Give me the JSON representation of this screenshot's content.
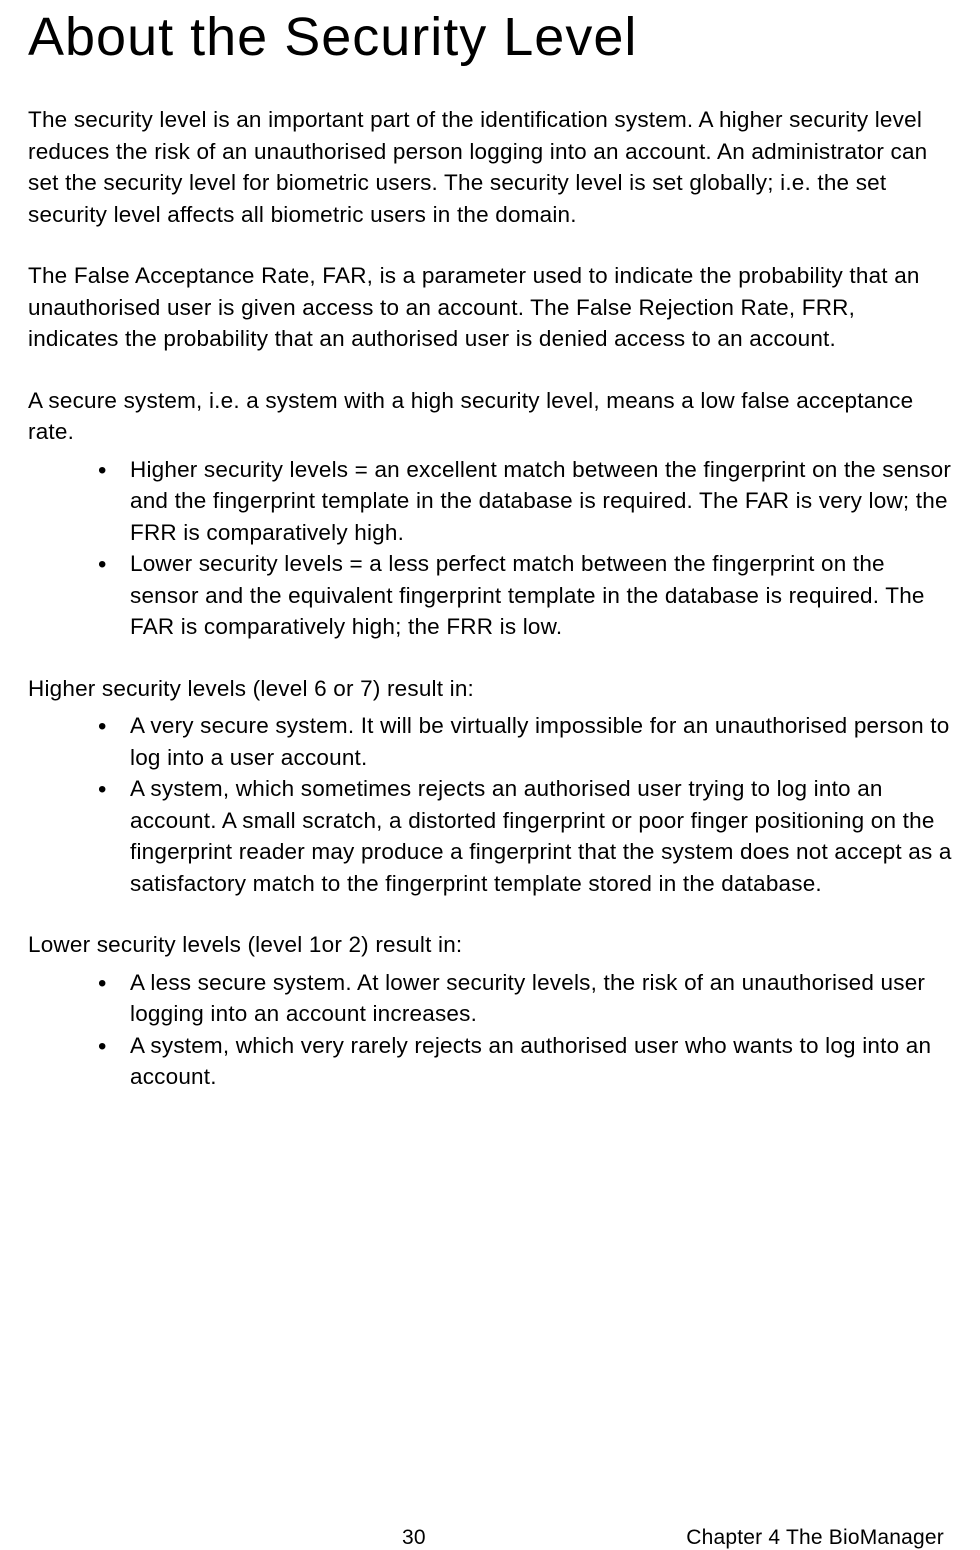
{
  "title": "About the Security Level",
  "para1": "The security level is an important part of the identification system. A higher security level reduces the risk of an unauthorised person logging into an account. An administrator can set the security level for biometric users. The security level is set globally; i.e. the set security level affects all biometric users in the domain.",
  "para2": "The False Acceptance Rate, FAR, is a parameter used to indicate the probability that an unauthorised user is given access to an account. The False Rejection Rate, FRR, indicates the probability that an authorised user is denied access to an account.",
  "para3": "A secure system, i.e. a system with a high security level, means a low false acceptance rate.",
  "list1": {
    "item1": "Higher security levels = an excellent match between the fingerprint on the sensor and the fingerprint template in the database is required. The FAR is very low; the FRR is comparatively high.",
    "item2": "Lower security levels = a less perfect match between the fingerprint on the sensor and the equivalent fingerprint template in the database is required. The FAR is comparatively high; the FRR is low."
  },
  "lead2": "Higher security levels (level 6 or 7) result in:",
  "list2": {
    "item1": "A very secure system. It will be virtually impossible for an unauthorised person to log into a user account.",
    "item2": "A system, which sometimes rejects an authorised user trying to log into an account. A small scratch, a distorted fingerprint or poor finger positioning on the fingerprint reader may produce a fingerprint that the system does not accept as a satisfactory match to the fingerprint template stored in the database."
  },
  "lead3": "Lower security levels (level 1or 2) result in:",
  "list3": {
    "item1": "A less secure system. At lower security levels, the risk of an unauthorised user logging into an account increases.",
    "item2": "A system, which very rarely rejects an authorised user who wants to log into an account."
  },
  "footer": {
    "page_number": "30",
    "chapter": "Chapter 4 The BioManager"
  }
}
